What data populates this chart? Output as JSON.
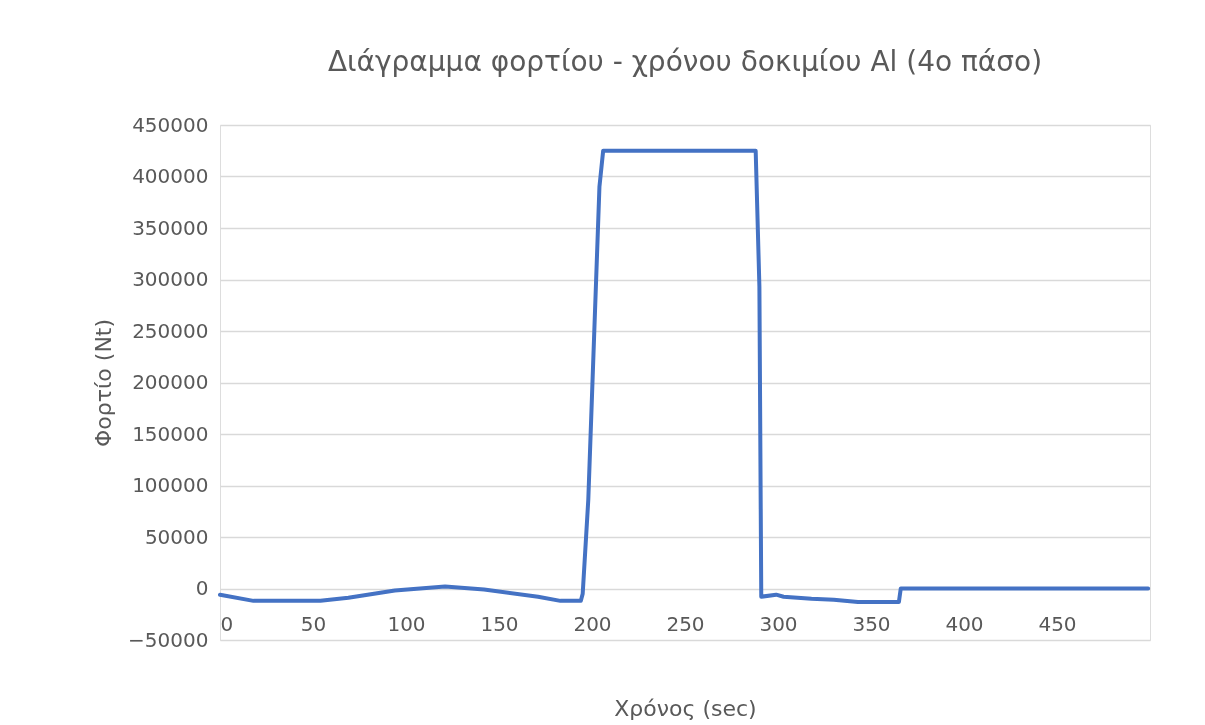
{
  "chart_data": {
    "type": "line",
    "title": "Διάγραμμα φορτίου - χρόνου δοκιμίου Al (4ο πάσο)",
    "xlabel": "Χρόνος (sec)",
    "ylabel": "Φορτίο (Nt)",
    "x": [
      0,
      18,
      54,
      69,
      94,
      121,
      142,
      171,
      183,
      194,
      195,
      198,
      204,
      206,
      288,
      290,
      291,
      299,
      303,
      318,
      330,
      343,
      365,
      366,
      400,
      499
    ],
    "series": [
      {
        "color": "#4472c4",
        "values": [
          -6000,
          -12000,
          -12000,
          -9000,
          -2000,
          2000,
          -1000,
          -8000,
          -12000,
          -12000,
          -5000,
          86000,
          390000,
          425000,
          425000,
          293000,
          -8000,
          -6000,
          -8000,
          -10000,
          -11000,
          -13000,
          -13000,
          0,
          0,
          0
        ]
      }
    ],
    "xlim": [
      0,
      500
    ],
    "xticks": [
      0,
      50,
      100,
      150,
      200,
      250,
      300,
      350,
      400,
      450
    ],
    "ylim": [
      -50000,
      450000
    ],
    "yticks": [
      -50000,
      0,
      50000,
      100000,
      150000,
      200000,
      250000,
      300000,
      350000,
      400000,
      450000
    ],
    "grid": "y",
    "legend": false
  }
}
